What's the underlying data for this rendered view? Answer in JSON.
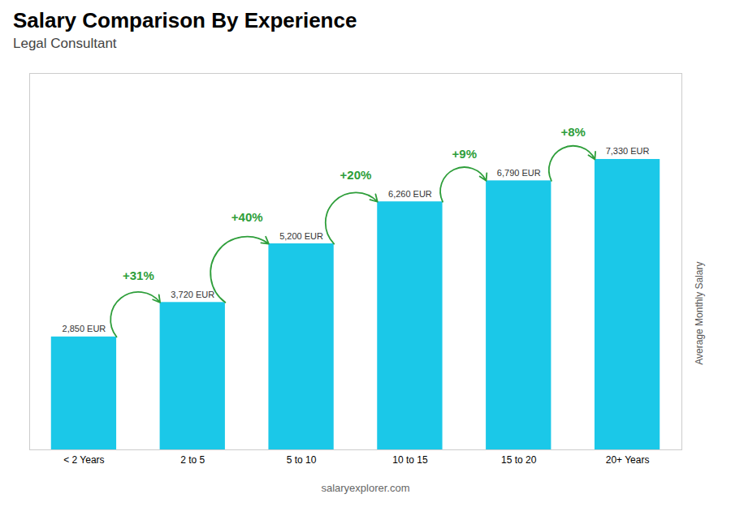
{
  "chart_data": {
    "type": "bar",
    "title": "Salary Comparison By Experience",
    "subtitle": "Legal Consultant",
    "ylabel": "Average Monthly Salary",
    "caption": "salaryexplorer.com",
    "categories": [
      "< 2 Years",
      "2 to 5",
      "5 to 10",
      "10 to 15",
      "15 to 20",
      "20+ Years"
    ],
    "values": [
      2850,
      3720,
      5200,
      6260,
      6790,
      7330
    ],
    "value_labels": [
      "2,850 EUR",
      "3,720 EUR",
      "5,200 EUR",
      "6,260 EUR",
      "6,790 EUR",
      "7,330 EUR"
    ],
    "data_labels": true,
    "color": "#1BC8E8",
    "ylim": [
      0,
      9500
    ],
    "tick_labels": "x",
    "grid": false,
    "annotations": [
      {
        "text": "+31%",
        "from": "< 2 Years",
        "to": "2 to 5"
      },
      {
        "text": "+40%",
        "from": "2 to 5",
        "to": "5 to 10"
      },
      {
        "text": "+20%",
        "from": "5 to 10",
        "to": "10 to 15"
      },
      {
        "text": "+9%",
        "from": "10 to 15",
        "to": "15 to 20"
      },
      {
        "text": "+8%",
        "from": "15 to 20",
        "to": "20+ Years"
      }
    ]
  }
}
